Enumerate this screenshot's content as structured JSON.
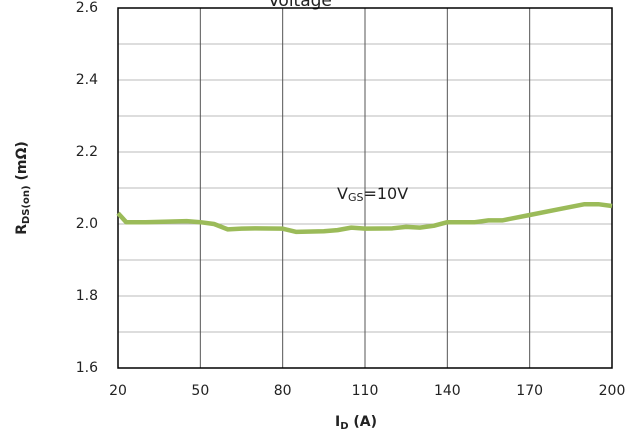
{
  "chart_data": {
    "type": "line",
    "title": "Voltage",
    "xlabel": {
      "main": "I",
      "sub": "D",
      "rest": " (A)"
    },
    "ylabel": {
      "main": "R",
      "sub": "DS(on)",
      "rest": " (mΩ)"
    },
    "annotation": {
      "main": "V",
      "sub": "GS",
      "rest": "=10V"
    },
    "x": [
      20,
      23,
      30,
      40,
      45,
      50,
      55,
      60,
      65,
      70,
      80,
      85,
      95,
      100,
      105,
      110,
      120,
      125,
      130,
      135,
      140,
      150,
      155,
      160,
      170,
      180,
      190,
      195,
      200
    ],
    "series": [
      {
        "name": "VGS=10V",
        "color": "#9bbb59",
        "values": [
          2.03,
          2.005,
          2.005,
          2.007,
          2.008,
          2.005,
          2.0,
          1.985,
          1.987,
          1.988,
          1.987,
          1.978,
          1.98,
          1.983,
          1.99,
          1.987,
          1.988,
          1.992,
          1.99,
          1.995,
          2.005,
          2.005,
          2.01,
          2.01,
          2.025,
          2.04,
          2.055,
          2.055,
          2.05
        ]
      }
    ],
    "xlim": [
      20,
      200
    ],
    "xticks": [
      20,
      50,
      80,
      110,
      140,
      170,
      200
    ],
    "ylim": [
      1.6,
      2.6
    ],
    "yticks": [
      1.6,
      1.8,
      {
        "value": 2,
        "label": "2.0"
      },
      2.2,
      2.4,
      2.6
    ],
    "minor_ygrid": [
      1.7,
      1.9,
      2.1,
      2.3,
      2.5
    ],
    "grid": true
  }
}
